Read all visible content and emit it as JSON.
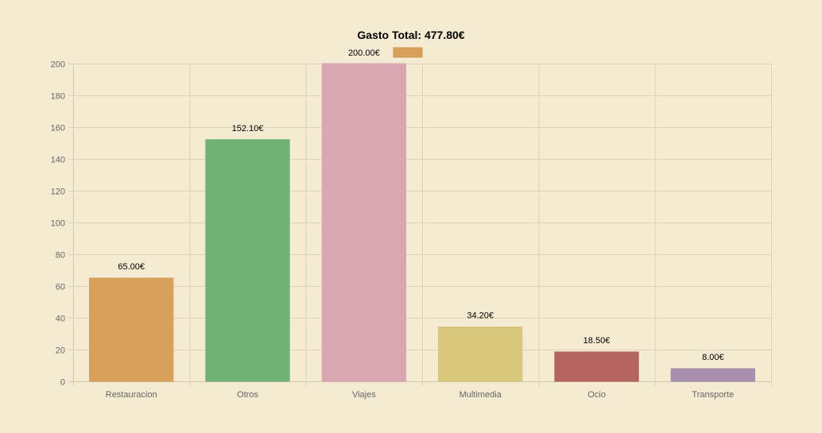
{
  "chart_data": {
    "type": "bar",
    "title": "Gasto Total: 477.80€",
    "xlabel": "",
    "ylabel": "",
    "categories": [
      "Restauracion",
      "Otros",
      "Viajes",
      "Multimedia",
      "Ocio",
      "Transporte"
    ],
    "values": [
      65.0,
      152.1,
      200.0,
      34.2,
      18.5,
      8.0
    ],
    "value_labels": [
      "65.00€",
      "152.10€",
      "200.00€",
      "34.20€",
      "18.50€",
      "8.00€"
    ],
    "colors": [
      "#d9a05b",
      "#71b175",
      "#d9a6b2",
      "#d9c77e",
      "#b3645c",
      "#a88fb0"
    ],
    "ylim": [
      0,
      200
    ],
    "yticks": [
      0,
      20,
      40,
      60,
      80,
      100,
      120,
      140,
      160,
      180,
      200
    ],
    "grid": true,
    "legend": {
      "placement": "top",
      "swatch_color": "#d9a05b"
    }
  }
}
